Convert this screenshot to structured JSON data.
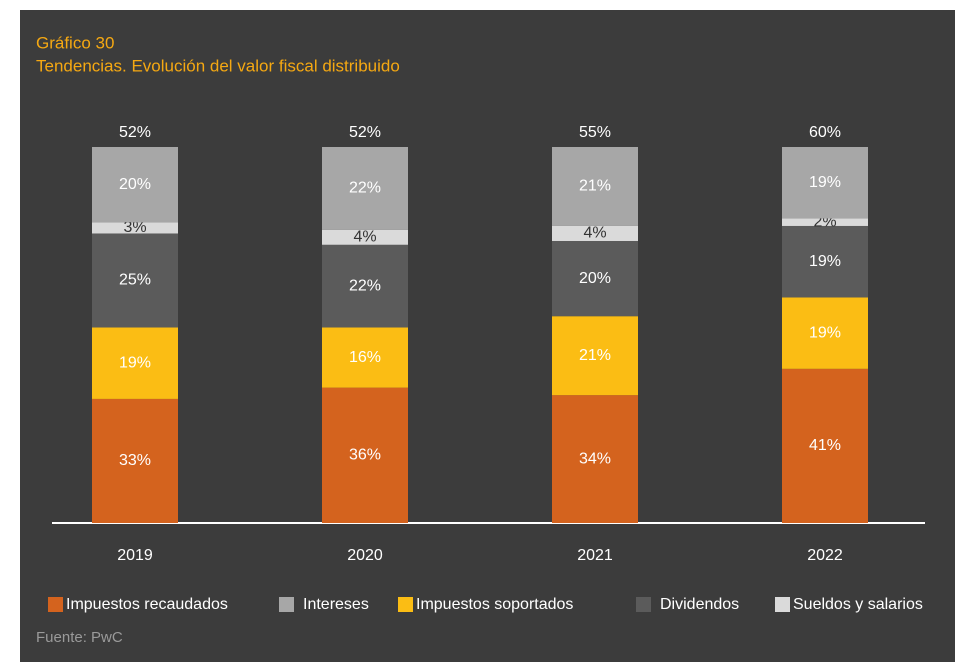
{
  "chart_data": {
    "type": "bar",
    "stacked": true,
    "title": "Gráfico 30",
    "subtitle": "Tendencias. Evolución del valor fiscal distribuido",
    "categories": [
      "2019",
      "2020",
      "2021",
      "2022"
    ],
    "series": [
      {
        "name": "Impuestos recaudados",
        "color": "#d4631e",
        "values": [
          33,
          36,
          34,
          41
        ],
        "value_labels": [
          "33%",
          "36%",
          "34%",
          "41%"
        ]
      },
      {
        "name": "Impuestos soportados",
        "color": "#fbbd14",
        "values": [
          19,
          16,
          21,
          19
        ],
        "value_labels": [
          "19%",
          "16%",
          "21%",
          "19%"
        ]
      },
      {
        "name": "Dividendos",
        "color": "#5b5b5b",
        "values": [
          25,
          22,
          20,
          19
        ],
        "value_labels": [
          "25%",
          "22%",
          "20%",
          "19%"
        ]
      },
      {
        "name": "Sueldos y salarios",
        "color": "#dadada",
        "values": [
          3,
          4,
          4,
          2
        ],
        "value_labels": [
          "3%",
          "4%",
          "4%",
          "2%"
        ]
      },
      {
        "name": "Intereses",
        "color": "#a7a7a7",
        "values": [
          20,
          22,
          21,
          19
        ],
        "value_labels": [
          "20%",
          "22%",
          "21%",
          "19%"
        ]
      }
    ],
    "top_values": [
      52,
      52,
      55,
      60
    ],
    "top_value_labels": [
      "52%",
      "52%",
      "55%",
      "60%"
    ],
    "ylim": [
      0,
      100
    ],
    "source": "Fuente: PwC"
  }
}
